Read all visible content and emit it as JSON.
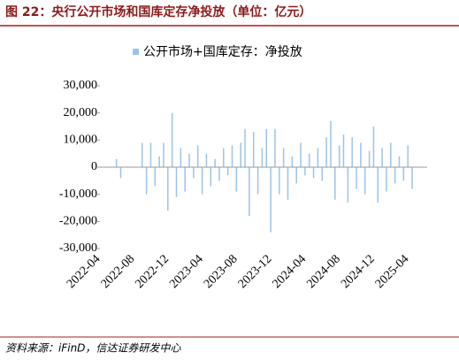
{
  "header": {
    "title": "图 22：央行公开市场和国库定存净投放（单位：亿元）"
  },
  "chart_data": {
    "type": "bar",
    "series": [
      {
        "name": "公开市场+国库定存：净投放",
        "color": "#9dc3e6",
        "values": [
          0,
          0,
          0,
          0,
          0,
          3000,
          -4000,
          0,
          0,
          0,
          0,
          9000,
          -10000,
          9000,
          -7000,
          4000,
          9000,
          -16000,
          20000,
          -11000,
          7000,
          -9000,
          5000,
          -4000,
          8000,
          -10000,
          5000,
          -7000,
          3000,
          -5000,
          7000,
          -3000,
          8000,
          -9000,
          9000,
          14000,
          -18000,
          13000,
          -10000,
          7000,
          14000,
          -24000,
          14000,
          -10000,
          7000,
          -12000,
          4000,
          -6000,
          9000,
          -3000,
          5000,
          -4000,
          7000,
          -5000,
          11000,
          17000,
          -12000,
          8000,
          12000,
          -13000,
          11000,
          -8000,
          9000,
          -10000,
          6000,
          15000,
          -13000,
          7000,
          -9000,
          9000,
          -6000,
          4000,
          -5000,
          8000,
          -8000,
          0,
          0,
          0
        ]
      }
    ],
    "categories": [
      "2022-04",
      null,
      null,
      null,
      null,
      null,
      null,
      null,
      "2022-08",
      null,
      null,
      null,
      null,
      null,
      null,
      null,
      "2022-12",
      null,
      null,
      null,
      null,
      null,
      null,
      null,
      "2023-04",
      null,
      null,
      null,
      null,
      null,
      null,
      null,
      "2023-08",
      null,
      null,
      null,
      null,
      null,
      null,
      null,
      "2023-12",
      null,
      null,
      null,
      null,
      null,
      null,
      null,
      "2024-04",
      null,
      null,
      null,
      null,
      null,
      null,
      null,
      "2024-08",
      null,
      null,
      null,
      null,
      null,
      null,
      null,
      "2024-12",
      null,
      null,
      null,
      null,
      null,
      null,
      null,
      "2025-04",
      null,
      null,
      null,
      null,
      null
    ],
    "ylim": [
      -30000,
      30000
    ],
    "yticks": [
      {
        "value": -30000,
        "label": "-30,000"
      },
      {
        "value": -20000,
        "label": "-20,000"
      },
      {
        "value": -10000,
        "label": "-10,000"
      },
      0,
      {
        "value": 10000,
        "label": "10,000"
      },
      {
        "value": 20000,
        "label": "20,000"
      },
      {
        "value": 30000,
        "label": "30,000"
      }
    ],
    "grid": false,
    "legend": "top"
  },
  "footer": {
    "source": "资料来源：iFinD，信达证券研发中心"
  }
}
